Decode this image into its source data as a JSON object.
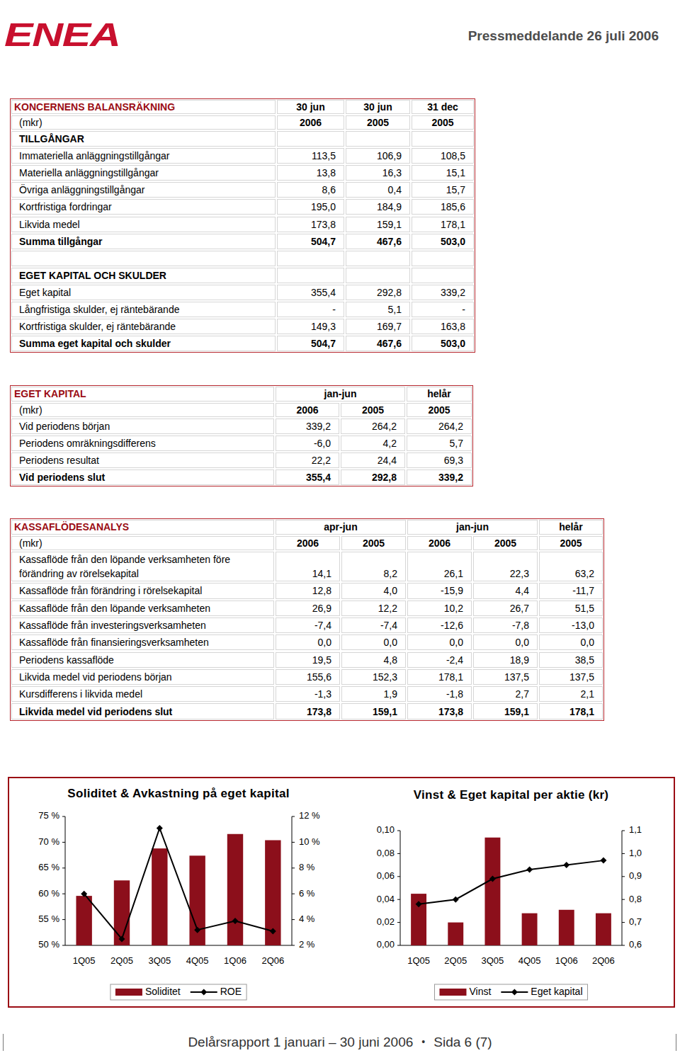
{
  "header": {
    "logo": "ENEA",
    "title": "Pressmeddelande 26 juli 2006"
  },
  "tables": [
    {
      "title": "KONCERNENS BALANSRÄKNING",
      "unit": "(mkr)",
      "groups": [
        {
          "label": "30 jun",
          "years": [
            "2006"
          ]
        },
        {
          "label": "30 jun",
          "years": [
            "2005"
          ]
        },
        {
          "label": "31 dec",
          "years": [
            "2005"
          ]
        }
      ],
      "sections": [
        {
          "heading": "TILLGÅNGAR",
          "rows": [
            {
              "label": "Immateriella anläggningstillgångar",
              "values": [
                "113,5",
                "106,9",
                "108,5"
              ]
            },
            {
              "label": "Materiella anläggningstillgångar",
              "values": [
                "13,8",
                "16,3",
                "15,1"
              ]
            },
            {
              "label": "Övriga anläggningstillgångar",
              "values": [
                "8,6",
                "0,4",
                "15,7"
              ]
            },
            {
              "label": "Kortfristiga fordringar",
              "values": [
                "195,0",
                "184,9",
                "185,6"
              ]
            },
            {
              "label": "Likvida medel",
              "values": [
                "173,8",
                "159,1",
                "178,1"
              ]
            },
            {
              "label": "Summa tillgångar",
              "values": [
                "504,7",
                "467,6",
                "503,0"
              ]
            }
          ]
        },
        {
          "heading": "EGET KAPITAL OCH SKULDER",
          "rows": [
            {
              "label": "Eget kapital",
              "values": [
                "355,4",
                "292,8",
                "339,2"
              ]
            },
            {
              "label": "Långfristiga skulder, ej räntebärande",
              "values": [
                "-",
                "5,1",
                "-"
              ]
            },
            {
              "label": "Kortfristiga skulder, ej räntebärande",
              "values": [
                "149,3",
                "169,7",
                "163,8"
              ]
            },
            {
              "label": "Summa eget kapital och skulder",
              "values": [
                "504,7",
                "467,6",
                "503,0"
              ]
            }
          ]
        }
      ]
    },
    {
      "title": "EGET KAPITAL",
      "unit": "(mkr)",
      "groups": [
        {
          "label": "jan-jun",
          "years": [
            "2006",
            "2005"
          ]
        },
        {
          "label": "helår",
          "years": [
            "2005"
          ]
        }
      ],
      "sections": [
        {
          "rows": [
            {
              "label": "Vid periodens början",
              "values": [
                "339,2",
                "264,2",
                "264,2"
              ]
            },
            {
              "label": "Periodens omräkningsdifferens",
              "values": [
                "-6,0",
                "4,2",
                "5,7"
              ]
            },
            {
              "label": "Periodens resultat",
              "values": [
                "22,2",
                "24,4",
                "69,3"
              ]
            },
            {
              "label": "Vid periodens slut",
              "values": [
                "355,4",
                "292,8",
                "339,2"
              ]
            }
          ]
        }
      ]
    },
    {
      "title": "KASSAFLÖDESANALYS",
      "unit": "(mkr)",
      "groups": [
        {
          "label": "apr-jun",
          "years": [
            "2006",
            "2005"
          ]
        },
        {
          "label": "jan-jun",
          "years": [
            "2006",
            "2005"
          ]
        },
        {
          "label": "helår",
          "years": [
            "2005"
          ]
        }
      ],
      "sections": [
        {
          "rows": [
            {
              "label": [
                "Kassaflöde från den löpande verksamheten före",
                "förändring av rörelsekapital"
              ],
              "values": [
                "14,1",
                "8,2",
                "26,1",
                "22,3",
                "63,2"
              ]
            },
            {
              "label": "Kassaflöde från förändring i rörelsekapital",
              "values": [
                "12,8",
                "4,0",
                "-15,9",
                "4,4",
                "-11,7"
              ]
            },
            {
              "label": "Kassaflöde från den löpande verksamheten",
              "values": [
                "26,9",
                "12,2",
                "10,2",
                "26,7",
                "51,5"
              ]
            },
            {
              "label": "Kassaflöde från investeringsverksamheten",
              "values": [
                "-7,4",
                "-7,4",
                "-12,6",
                "-7,8",
                "-13,0"
              ]
            },
            {
              "label": "Kassaflöde från finansieringsverksamheten",
              "values": [
                "0,0",
                "0,0",
                "0,0",
                "0,0",
                "0,0"
              ]
            },
            {
              "label": "Periodens kassaflöde",
              "values": [
                "19,5",
                "4,8",
                "-2,4",
                "18,9",
                "38,5"
              ]
            },
            {
              "label": "Likvida medel vid periodens början",
              "values": [
                "155,6",
                "152,3",
                "178,1",
                "137,5",
                "137,5"
              ]
            },
            {
              "label": "Kursdifferens i likvida medel",
              "values": [
                "-1,3",
                "1,9",
                "-1,8",
                "2,7",
                "2,1"
              ]
            },
            {
              "label": "Likvida medel vid periodens slut",
              "values": [
                "173,8",
                "159,1",
                "173,8",
                "159,1",
                "178,1"
              ]
            }
          ]
        }
      ]
    }
  ],
  "chart_data": [
    {
      "type": "bar",
      "title": "Soliditet & Avkastning på eget kapital",
      "categories": [
        "1Q05",
        "2Q05",
        "3Q05",
        "4Q05",
        "1Q06",
        "2Q06"
      ],
      "series": [
        {
          "name": "Soliditet",
          "type": "bar",
          "color": "#8c0f1b",
          "values": [
            59.6,
            62.6,
            68.8,
            67.4,
            71.6,
            70.4
          ]
        },
        {
          "name": "ROE",
          "type": "line",
          "color": "#000000",
          "marker": "diamond",
          "axis": "y2",
          "values": [
            6.0,
            2.5,
            11.1,
            3.2,
            3.9,
            3.1
          ]
        }
      ],
      "ylim": [
        50,
        75
      ],
      "yticks": [
        {
          "value": 50,
          "label": "50 %"
        },
        {
          "value": 55,
          "label": "55 %"
        },
        {
          "value": 60,
          "label": "60 %"
        },
        {
          "value": 65,
          "label": "65 %"
        },
        {
          "value": 70,
          "label": "70 %"
        },
        {
          "value": 75,
          "label": "75 %"
        }
      ],
      "y2lim": [
        2,
        12
      ],
      "y2ticks": [
        {
          "value": 2,
          "label": "2 %"
        },
        {
          "value": 4,
          "label": "4 %"
        },
        {
          "value": 6,
          "label": "6 %"
        },
        {
          "value": 8,
          "label": "8 %"
        },
        {
          "value": 10,
          "label": "10 %"
        },
        {
          "value": 12,
          "label": "12 %"
        }
      ],
      "grid": false,
      "legend": "bottom"
    },
    {
      "type": "bar",
      "title": "Vinst & Eget kapital per aktie (kr)",
      "categories": [
        "1Q05",
        "2Q05",
        "3Q05",
        "4Q05",
        "1Q06",
        "2Q06"
      ],
      "series": [
        {
          "name": "Vinst",
          "type": "bar",
          "color": "#8c0f1b",
          "values": [
            0.045,
            0.02,
            0.094,
            0.028,
            0.031,
            0.028
          ]
        },
        {
          "name": "Eget kapital",
          "type": "line",
          "color": "#000000",
          "marker": "diamond",
          "axis": "y2",
          "values": [
            0.78,
            0.8,
            0.89,
            0.93,
            0.95,
            0.97
          ]
        }
      ],
      "ylim": [
        0,
        0.1
      ],
      "yticks": [
        {
          "value": 0,
          "label": "0,00"
        },
        {
          "value": 0.02,
          "label": "0,02"
        },
        {
          "value": 0.04,
          "label": "0,04"
        },
        {
          "value": 0.06,
          "label": "0,06"
        },
        {
          "value": 0.08,
          "label": "0,08"
        },
        {
          "value": 0.1,
          "label": "0,10"
        }
      ],
      "y2lim": [
        0.6,
        1.1
      ],
      "y2ticks": [
        {
          "value": 0.6,
          "label": "0,6"
        },
        {
          "value": 0.7,
          "label": "0,7"
        },
        {
          "value": 0.8,
          "label": "0,8"
        },
        {
          "value": 0.9,
          "label": "0,9"
        },
        {
          "value": 1.0,
          "label": "1,0"
        },
        {
          "value": 1.1,
          "label": "1,1"
        }
      ],
      "grid": false,
      "legend": "bottom"
    }
  ],
  "footer": {
    "text": "Delårsrapport 1 januari – 30 juni 2006",
    "separator": "•",
    "page": "Sida 6 (7)"
  }
}
